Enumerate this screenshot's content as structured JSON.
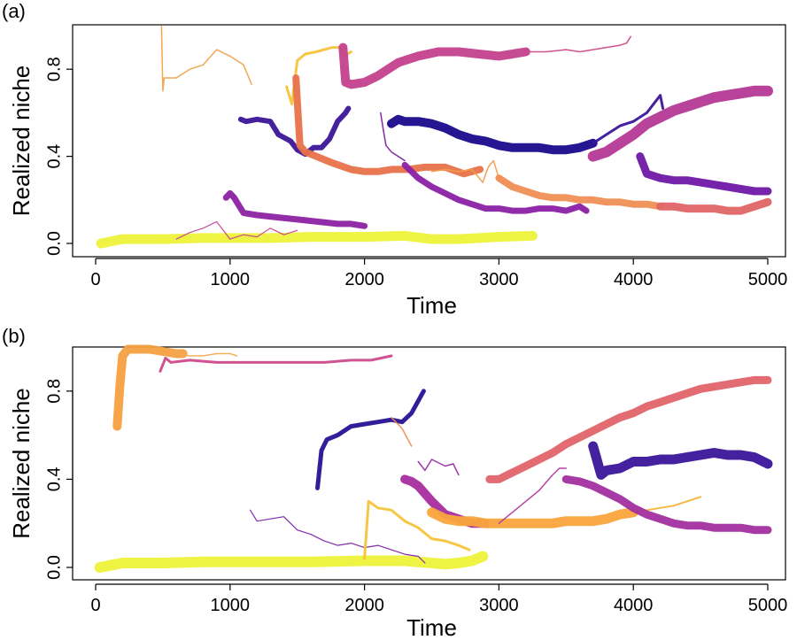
{
  "chart_data": [
    {
      "type": "line",
      "panel_label": "(a)",
      "xlabel": "Time",
      "ylabel": "Realized niche",
      "xlim": [
        0,
        5000
      ],
      "ylim": [
        0,
        1
      ],
      "x_ticks": [
        "0",
        "1000",
        "2000",
        "3000",
        "4000",
        "5000"
      ],
      "y_ticks": [
        "0.0",
        "0.4",
        "0.8"
      ],
      "grid": false,
      "series": [
        {
          "color": "#eef23a",
          "width": 11,
          "x": [
            40,
            200,
            500,
            800,
            1000,
            1300,
            1600,
            2000,
            2300,
            2500,
            2700,
            3000,
            3250
          ],
          "y": [
            0.0,
            0.02,
            0.02,
            0.025,
            0.025,
            0.025,
            0.03,
            0.03,
            0.035,
            0.02,
            0.02,
            0.03,
            0.035
          ]
        },
        {
          "color": "#f2a14a",
          "width": 1.5,
          "x": [
            490,
            500,
            510,
            600,
            700,
            800,
            900,
            1000,
            1100,
            1160
          ],
          "y": [
            1.0,
            0.7,
            0.76,
            0.76,
            0.8,
            0.82,
            0.89,
            0.86,
            0.82,
            0.73
          ]
        },
        {
          "color": "#f6c33b",
          "width": 3,
          "x": [
            1420,
            1460,
            1500,
            1560,
            1640,
            1760,
            1820,
            1850,
            1900
          ],
          "y": [
            0.72,
            0.64,
            0.84,
            0.87,
            0.88,
            0.9,
            0.9,
            0.86,
            0.88
          ]
        },
        {
          "color": "#3b1597",
          "width": 6,
          "x": [
            1080,
            1120,
            1200,
            1300,
            1360,
            1450,
            1500,
            1560,
            1620,
            1680,
            1740,
            1800,
            1860,
            1880
          ],
          "y": [
            0.57,
            0.56,
            0.57,
            0.56,
            0.5,
            0.47,
            0.43,
            0.41,
            0.44,
            0.44,
            0.48,
            0.56,
            0.6,
            0.62
          ]
        },
        {
          "color": "#e8724a",
          "width": 8,
          "x": [
            1490,
            1520,
            1560,
            1640,
            1760,
            1900,
            2000,
            2100,
            2200,
            2330,
            2450,
            2600,
            2740,
            2860
          ],
          "y": [
            0.76,
            0.45,
            0.42,
            0.4,
            0.37,
            0.34,
            0.33,
            0.33,
            0.34,
            0.34,
            0.35,
            0.35,
            0.32,
            0.34
          ]
        },
        {
          "color": "#f19e4b",
          "width": 1.5,
          "x": [
            2500,
            2600,
            2700,
            2800,
            2880,
            2920,
            2960,
            3000,
            3060
          ],
          "y": [
            0.33,
            0.34,
            0.33,
            0.34,
            0.28,
            0.35,
            0.38,
            0.3,
            0.27
          ]
        },
        {
          "color": "#c4418c",
          "width": 10,
          "x": [
            1840,
            1860,
            1900,
            2000,
            2100,
            2250,
            2400,
            2550,
            2700,
            2850,
            3000,
            3100,
            3200
          ],
          "y": [
            0.9,
            0.74,
            0.73,
            0.74,
            0.77,
            0.83,
            0.86,
            0.88,
            0.88,
            0.87,
            0.86,
            0.87,
            0.88
          ]
        },
        {
          "color": "#cc4a89",
          "width": 1.5,
          "x": [
            3200,
            3350,
            3500,
            3600,
            3700,
            3800,
            3900,
            3950,
            3980
          ],
          "y": [
            0.88,
            0.88,
            0.89,
            0.88,
            0.89,
            0.9,
            0.91,
            0.92,
            0.95
          ]
        },
        {
          "color": "#8d22a2",
          "width": 7,
          "x": [
            970,
            1000,
            1030,
            1060,
            1100,
            1200,
            1350,
            1500,
            1650,
            1800,
            1900,
            2000
          ],
          "y": [
            0.21,
            0.23,
            0.21,
            0.18,
            0.14,
            0.13,
            0.12,
            0.11,
            0.1,
            0.09,
            0.09,
            0.08
          ]
        },
        {
          "color": "#c54394",
          "width": 1.2,
          "x": [
            600,
            700,
            800,
            900,
            1000,
            1100,
            1200,
            1300,
            1400,
            1450,
            1500
          ],
          "y": [
            0.02,
            0.05,
            0.07,
            0.1,
            0.02,
            0.04,
            0.03,
            0.07,
            0.04,
            0.05,
            0.06
          ]
        },
        {
          "color": "#7d1fa5",
          "width": 1.5,
          "x": [
            2120,
            2140,
            2160,
            2200,
            2250,
            2300
          ],
          "y": [
            0.6,
            0.52,
            0.45,
            0.42,
            0.4,
            0.38
          ]
        },
        {
          "color": "#8a21a4",
          "width": 7,
          "x": [
            2300,
            2400,
            2500,
            2600,
            2700,
            2800,
            2900,
            3000,
            3100,
            3200,
            3300,
            3400,
            3500,
            3600,
            3650
          ],
          "y": [
            0.36,
            0.3,
            0.26,
            0.23,
            0.2,
            0.18,
            0.16,
            0.16,
            0.15,
            0.15,
            0.16,
            0.16,
            0.15,
            0.17,
            0.15
          ]
        },
        {
          "color": "#1b0a8c",
          "width": 10,
          "x": [
            2200,
            2250,
            2300,
            2400,
            2500,
            2600,
            2700,
            2800,
            2900,
            3000,
            3100,
            3200,
            3300,
            3400,
            3500,
            3600,
            3700
          ],
          "y": [
            0.55,
            0.57,
            0.56,
            0.56,
            0.55,
            0.53,
            0.5,
            0.48,
            0.47,
            0.45,
            0.44,
            0.44,
            0.44,
            0.43,
            0.43,
            0.44,
            0.46
          ]
        },
        {
          "color": "#3a159a",
          "width": 3,
          "x": [
            3700,
            3800,
            3900,
            4000,
            4100,
            4150,
            4200,
            4220
          ],
          "y": [
            0.46,
            0.5,
            0.54,
            0.56,
            0.6,
            0.64,
            0.68,
            0.62
          ]
        },
        {
          "color": "#f08f55",
          "width": 8,
          "x": [
            3000,
            3100,
            3200,
            3300,
            3400,
            3500,
            3600,
            3700,
            3800,
            3900,
            4000,
            4100,
            4200
          ],
          "y": [
            0.3,
            0.26,
            0.24,
            0.22,
            0.21,
            0.21,
            0.2,
            0.2,
            0.19,
            0.19,
            0.18,
            0.18,
            0.17
          ]
        },
        {
          "color": "#e06566",
          "width": 9,
          "x": [
            4200,
            4300,
            4400,
            4500,
            4600,
            4700,
            4800,
            4900,
            5000
          ],
          "y": [
            0.17,
            0.17,
            0.16,
            0.16,
            0.16,
            0.15,
            0.15,
            0.17,
            0.19
          ]
        },
        {
          "color": "#b53896",
          "width": 12,
          "x": [
            3700,
            3800,
            3900,
            4000,
            4100,
            4200,
            4300,
            4400,
            4500,
            4600,
            4700,
            4800,
            4900,
            5000
          ],
          "y": [
            0.4,
            0.42,
            0.46,
            0.5,
            0.55,
            0.58,
            0.61,
            0.63,
            0.65,
            0.67,
            0.68,
            0.69,
            0.7,
            0.7
          ]
        },
        {
          "color": "#6e18a6",
          "width": 9,
          "x": [
            4050,
            4100,
            4200,
            4300,
            4400,
            4500,
            4600,
            4700,
            4800,
            4900,
            5000
          ],
          "y": [
            0.4,
            0.32,
            0.3,
            0.29,
            0.29,
            0.28,
            0.27,
            0.26,
            0.25,
            0.24,
            0.24
          ]
        }
      ]
    },
    {
      "type": "line",
      "panel_label": "(b)",
      "xlabel": "Time",
      "ylabel": "Realized niche",
      "xlim": [
        0,
        5000
      ],
      "ylim": [
        0,
        1
      ],
      "x_ticks": [
        "0",
        "1000",
        "2000",
        "3000",
        "4000",
        "5000"
      ],
      "y_ticks": [
        "0.0",
        "0.4",
        "0.8"
      ],
      "grid": false,
      "series": [
        {
          "color": "#eef23a",
          "width": 12,
          "x": [
            30,
            200,
            500,
            800,
            1000,
            1300,
            1600,
            2000,
            2300,
            2500,
            2600,
            2700,
            2800,
            2880
          ],
          "y": [
            0.0,
            0.02,
            0.02,
            0.025,
            0.025,
            0.025,
            0.025,
            0.03,
            0.03,
            0.02,
            0.015,
            0.02,
            0.03,
            0.05
          ]
        },
        {
          "color": "#f6a040",
          "width": 10,
          "x": [
            160,
            180,
            200,
            240,
            300,
            400,
            500,
            600,
            650
          ],
          "y": [
            0.64,
            0.82,
            0.96,
            0.99,
            0.99,
            0.99,
            0.98,
            0.97,
            0.97
          ]
        },
        {
          "color": "#f2ab55",
          "width": 1.5,
          "x": [
            600,
            700,
            800,
            900,
            1000,
            1050
          ],
          "y": [
            0.97,
            0.96,
            0.96,
            0.97,
            0.97,
            0.96
          ]
        },
        {
          "color": "#cc4a89",
          "width": 3,
          "x": [
            480,
            520,
            560,
            700,
            900,
            1100,
            1300,
            1500,
            1700,
            1900,
            2050,
            2200
          ],
          "y": [
            0.89,
            0.95,
            0.93,
            0.94,
            0.93,
            0.93,
            0.93,
            0.93,
            0.93,
            0.94,
            0.94,
            0.96
          ]
        },
        {
          "color": "#7c1fa8",
          "width": 1.2,
          "x": [
            1150,
            1200,
            1300,
            1400,
            1500,
            1600,
            1700,
            1800,
            1900,
            2000,
            2100,
            2200,
            2300,
            2400,
            2450
          ],
          "y": [
            0.26,
            0.21,
            0.22,
            0.23,
            0.17,
            0.15,
            0.12,
            0.1,
            0.11,
            0.09,
            0.1,
            0.08,
            0.06,
            0.05,
            0.02
          ]
        },
        {
          "color": "#291196",
          "width": 5,
          "x": [
            1650,
            1680,
            1720,
            1800,
            1900,
            2000,
            2100,
            2200,
            2280,
            2350,
            2440
          ],
          "y": [
            0.36,
            0.53,
            0.58,
            0.6,
            0.64,
            0.65,
            0.66,
            0.67,
            0.66,
            0.7,
            0.8
          ]
        },
        {
          "color": "#f08f55",
          "width": 1.5,
          "x": [
            2200,
            2280,
            2350
          ],
          "y": [
            0.68,
            0.63,
            0.55
          ]
        },
        {
          "color": "#f6c33b",
          "width": 3,
          "x": [
            2000,
            2030,
            2100,
            2200,
            2300,
            2400,
            2500,
            2600,
            2700,
            2780
          ],
          "y": [
            0.04,
            0.3,
            0.27,
            0.26,
            0.21,
            0.18,
            0.13,
            0.12,
            0.1,
            0.08
          ]
        },
        {
          "color": "#9a2aa5",
          "width": 1.5,
          "x": [
            2400,
            2450,
            2500,
            2600,
            2660,
            2700
          ],
          "y": [
            0.48,
            0.44,
            0.49,
            0.46,
            0.47,
            0.42
          ]
        },
        {
          "color": "#a62d9e",
          "width": 10,
          "x": [
            2300,
            2350,
            2400,
            2500,
            2600,
            2700,
            2800,
            2900
          ],
          "y": [
            0.4,
            0.39,
            0.37,
            0.3,
            0.24,
            0.22,
            0.2,
            0.2
          ]
        },
        {
          "color": "#f9a53c",
          "width": 11,
          "x": [
            2500,
            2600,
            2700,
            2800,
            2900,
            3000,
            3100,
            3200,
            3300,
            3400,
            3500,
            3600,
            3700,
            3800,
            3900,
            4000
          ],
          "y": [
            0.25,
            0.22,
            0.21,
            0.21,
            0.2,
            0.2,
            0.2,
            0.2,
            0.2,
            0.2,
            0.21,
            0.21,
            0.21,
            0.22,
            0.24,
            0.25
          ]
        },
        {
          "color": "#f6b33a",
          "width": 2,
          "x": [
            4000,
            4100,
            4200,
            4300,
            4400,
            4500
          ],
          "y": [
            0.25,
            0.26,
            0.27,
            0.28,
            0.3,
            0.32
          ]
        },
        {
          "color": "#b03a9c",
          "width": 1.5,
          "x": [
            3000,
            3100,
            3200,
            3300,
            3400,
            3450,
            3500
          ],
          "y": [
            0.2,
            0.25,
            0.3,
            0.35,
            0.42,
            0.45,
            0.45
          ]
        },
        {
          "color": "#a22fa0",
          "width": 9,
          "x": [
            3500,
            3600,
            3700,
            3800,
            3900,
            4000,
            4100,
            4200,
            4300,
            4400,
            4500,
            4600,
            4700,
            4800,
            4900,
            5000
          ],
          "y": [
            0.4,
            0.39,
            0.37,
            0.34,
            0.31,
            0.27,
            0.24,
            0.22,
            0.2,
            0.19,
            0.19,
            0.18,
            0.18,
            0.18,
            0.17,
            0.17
          ]
        },
        {
          "color": "#e1636a",
          "width": 9,
          "x": [
            2930,
            3000,
            3100,
            3200,
            3300,
            3400,
            3500,
            3600,
            3700,
            3800,
            3900,
            4000,
            4100,
            4200,
            4300,
            4400,
            4500,
            4600,
            4700,
            4800,
            4900,
            5000
          ],
          "y": [
            0.4,
            0.4,
            0.43,
            0.46,
            0.49,
            0.52,
            0.56,
            0.59,
            0.62,
            0.65,
            0.68,
            0.7,
            0.73,
            0.75,
            0.77,
            0.79,
            0.81,
            0.82,
            0.83,
            0.84,
            0.85,
            0.85
          ]
        },
        {
          "color": "#3a159a",
          "width": 11,
          "x": [
            3700,
            3760,
            3800,
            3900,
            4000,
            4100,
            4200,
            4300,
            4400,
            4500,
            4600,
            4700,
            4800,
            4900,
            5000
          ],
          "y": [
            0.55,
            0.42,
            0.44,
            0.45,
            0.48,
            0.48,
            0.49,
            0.49,
            0.5,
            0.51,
            0.52,
            0.51,
            0.51,
            0.5,
            0.47
          ]
        }
      ]
    }
  ]
}
